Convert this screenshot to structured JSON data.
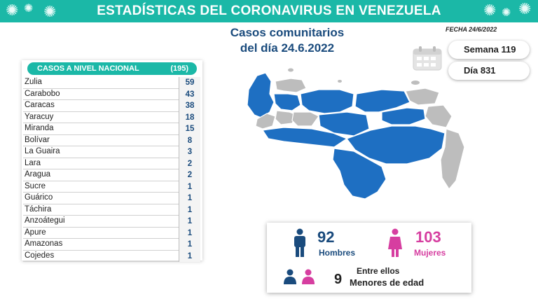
{
  "banner": {
    "title": "ESTADÍSTICAS DEL CORONAVIRUS EN VENEZUELA"
  },
  "header": {
    "title_line1": "Casos comunitarios",
    "title_line2": "del día 24.6.2022",
    "fecha": "FECHA 24/6/2022",
    "semana": "Semana 119",
    "dia": "Día 831"
  },
  "table": {
    "title": "CASOS A NIVEL NACIONAL",
    "total": "(195)",
    "rows": [
      {
        "state": "Zulia",
        "count": "59"
      },
      {
        "state": "Carabobo",
        "count": "43"
      },
      {
        "state": "Caracas",
        "count": "38"
      },
      {
        "state": "Yaracuy",
        "count": "18"
      },
      {
        "state": "Miranda",
        "count": "15"
      },
      {
        "state": "Bolívar",
        "count": "8"
      },
      {
        "state": "La Guaira",
        "count": "3"
      },
      {
        "state": "Lara",
        "count": "2"
      },
      {
        "state": "Aragua",
        "count": "2"
      },
      {
        "state": "Sucre",
        "count": "1"
      },
      {
        "state": "Guárico",
        "count": "1"
      },
      {
        "state": "Táchira",
        "count": "1"
      },
      {
        "state": "Anzoátegui",
        "count": "1"
      },
      {
        "state": "Apure",
        "count": "1"
      },
      {
        "state": "Amazonas",
        "count": "1"
      },
      {
        "state": "Cojedes",
        "count": "1"
      }
    ]
  },
  "gender": {
    "men_count": "92",
    "men_label": "Hombres",
    "women_count": "103",
    "women_label": "Mujeres",
    "minors_prefix": "Entre ellos",
    "minors_count": "9",
    "minors_label": "Menores de edad"
  },
  "colors": {
    "teal": "#1bb8a7",
    "navy": "#1a4b7d",
    "map_affected": "#1e6fc2",
    "map_unaffected": "#bdbdbd",
    "men": "#1a4b7d",
    "women": "#d63ea0"
  },
  "icons": [
    "virus-icon",
    "calendar-icon",
    "man-icon",
    "woman-icon",
    "family-icon"
  ]
}
